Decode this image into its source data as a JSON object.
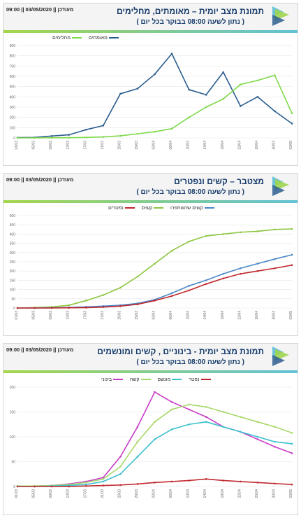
{
  "charts": [
    {
      "title": "תמונת מצב יומית – מאומתים, מחלימים",
      "subtitle": "( נתון לשעה 08:00 בבוקר בכל יום )",
      "stamp": "09:00 || 03/05/2020 || מעודכן",
      "logo_text": "משרד הבריאות",
      "legend": [
        "מחלימים",
        "מאומתים"
      ],
      "colors": {
        "recovered": "#7fd94a",
        "confirmed": "#2a5d8e"
      }
    },
    {
      "title": "מצטבר – קשים ונפטרים",
      "subtitle": "( נתון לשעה 08:00 בבוקר בכל יום )",
      "stamp": "09:00 || 03/05/2020 || מעודכן",
      "logo_text": "משרד הבריאות",
      "legend": [
        "נפטרים",
        "קשים",
        "קשים שהשתפרו"
      ],
      "colors": {
        "deceased": "#c0282d",
        "severe": "#8cc63f",
        "improved": "#4a86c8"
      }
    },
    {
      "title": "תמונת מצב יומית - בינוניים , קשים ומונשמים",
      "subtitle": "( נתון לשעה 08:00 בבוקר בכל יום )",
      "stamp": "09:00 || 03/05/2020 || מעודכן",
      "logo_text": "משרד הבריאות",
      "legend": [
        "בינוני",
        "קשה",
        "מונשם",
        "נפטר"
      ],
      "colors": {
        "moderate": "#c83cc8",
        "severe": "#a8d86a",
        "ventilated": "#3cc0cc",
        "deceased": "#c0282d"
      }
    }
  ],
  "chart_data": [
    {
      "type": "line",
      "x": [
        "01/03",
        "05/03",
        "09/03",
        "13/03",
        "17/03",
        "21/03",
        "25/03",
        "29/03",
        "02/04",
        "06/04",
        "10/04",
        "14/04",
        "18/04",
        "22/04",
        "26/04",
        "30/04",
        "03/05"
      ],
      "ylim": [
        0,
        900
      ],
      "yticks": [
        0,
        100,
        200,
        300,
        400,
        500,
        600,
        700,
        800,
        900
      ],
      "series": [
        {
          "name": "מאומתים",
          "values": [
            3,
            5,
            18,
            30,
            80,
            120,
            430,
            480,
            620,
            820,
            470,
            420,
            640,
            310,
            400,
            260,
            140
          ]
        },
        {
          "name": "מחלימים",
          "values": [
            0,
            0,
            1,
            2,
            5,
            10,
            20,
            40,
            60,
            90,
            200,
            300,
            380,
            520,
            560,
            610,
            240
          ]
        }
      ]
    },
    {
      "type": "line",
      "x": [
        "01/03",
        "05/03",
        "09/03",
        "13/03",
        "17/03",
        "21/03",
        "25/03",
        "29/03",
        "02/04",
        "06/04",
        "10/04",
        "14/04",
        "18/04",
        "22/04",
        "26/04",
        "30/04",
        "03/05"
      ],
      "ylim": [
        0,
        500
      ],
      "yticks": [
        0,
        50,
        100,
        150,
        200,
        250,
        300,
        350,
        400,
        450,
        500
      ],
      "series": [
        {
          "name": "קשים",
          "values": [
            0,
            2,
            6,
            15,
            40,
            70,
            110,
            170,
            240,
            310,
            360,
            390,
            400,
            410,
            415,
            425,
            428
          ]
        },
        {
          "name": "קשים שהשתפרו",
          "values": [
            0,
            0,
            1,
            3,
            6,
            10,
            15,
            25,
            45,
            80,
            120,
            150,
            185,
            215,
            240,
            265,
            288
          ]
        },
        {
          "name": "נפטרים",
          "values": [
            0,
            0,
            0,
            1,
            2,
            5,
            10,
            20,
            40,
            65,
            95,
            130,
            160,
            185,
            200,
            215,
            232
          ]
        }
      ]
    },
    {
      "type": "line",
      "x": [
        "01/03",
        "05/03",
        "09/03",
        "13/03",
        "17/03",
        "21/03",
        "25/03",
        "29/03",
        "02/04",
        "06/04",
        "10/04",
        "14/04",
        "18/04",
        "22/04",
        "26/04",
        "30/04",
        "03/05"
      ],
      "ylim": [
        0,
        200
      ],
      "yticks": [
        0,
        50,
        100,
        150,
        200
      ],
      "series": [
        {
          "name": "בינוני",
          "values": [
            1,
            1,
            2,
            5,
            10,
            18,
            60,
            120,
            190,
            170,
            155,
            140,
            120,
            110,
            95,
            80,
            67
          ]
        },
        {
          "name": "קשה",
          "values": [
            1,
            1,
            2,
            4,
            8,
            15,
            40,
            90,
            130,
            155,
            165,
            160,
            150,
            140,
            130,
            120,
            108
          ]
        },
        {
          "name": "מונשם",
          "values": [
            0,
            0,
            1,
            2,
            4,
            10,
            25,
            60,
            95,
            115,
            125,
            130,
            120,
            110,
            100,
            90,
            86
          ]
        },
        {
          "name": "נפטר",
          "values": [
            0,
            0,
            0,
            0,
            1,
            2,
            3,
            5,
            8,
            10,
            12,
            15,
            12,
            10,
            8,
            6,
            4
          ]
        }
      ]
    }
  ]
}
